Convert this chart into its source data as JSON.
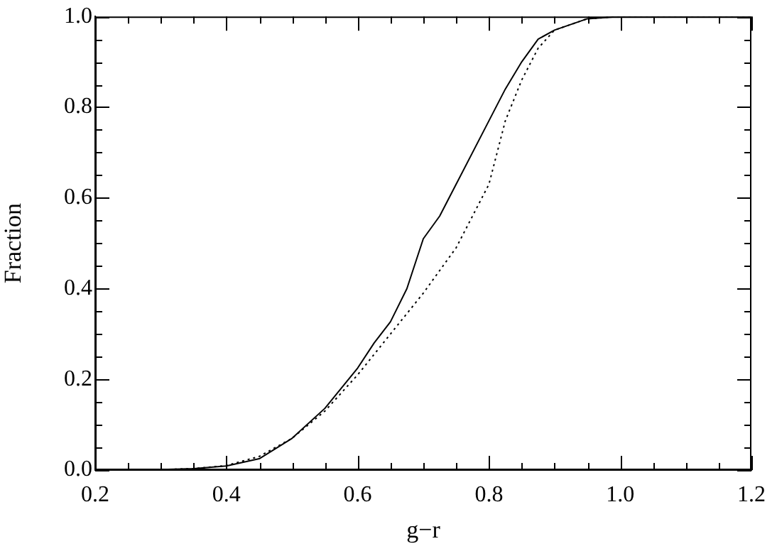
{
  "chart_data": {
    "type": "line",
    "xlabel": "g−r",
    "ylabel": "Fraction",
    "xlim": [
      0.2,
      1.2
    ],
    "ylim": [
      0,
      1
    ],
    "xticks": [
      0.2,
      {
        "value": 0.25,
        "label": null
      },
      {
        "value": 0.3,
        "label": null
      },
      {
        "value": 0.35,
        "label": null
      },
      0.4,
      {
        "value": 0.45,
        "label": null
      },
      {
        "value": 0.5,
        "label": null
      },
      {
        "value": 0.55,
        "label": null
      },
      0.6,
      {
        "value": 0.65,
        "label": null
      },
      {
        "value": 0.7,
        "label": null
      },
      {
        "value": 0.75,
        "label": null
      },
      0.8,
      {
        "value": 0.85,
        "label": null
      },
      {
        "value": 0.9,
        "label": null
      },
      {
        "value": 0.95,
        "label": null
      },
      {
        "value": 1,
        "label": "1.0"
      },
      {
        "value": 1.05,
        "label": null
      },
      {
        "value": 1.1,
        "label": null
      },
      {
        "value": 1.15,
        "label": null
      },
      1.2
    ],
    "yticks": [
      {
        "value": 0,
        "label": "0.0"
      },
      {
        "value": 0.05,
        "label": null
      },
      {
        "value": 0.1,
        "label": null
      },
      {
        "value": 0.15,
        "label": null
      },
      0.2,
      {
        "value": 0.25,
        "label": null
      },
      {
        "value": 0.3,
        "label": null
      },
      {
        "value": 0.35,
        "label": null
      },
      0.4,
      {
        "value": 0.45,
        "label": null
      },
      {
        "value": 0.5,
        "label": null
      },
      {
        "value": 0.55,
        "label": null
      },
      0.6,
      {
        "value": 0.65,
        "label": null
      },
      {
        "value": 0.7,
        "label": null
      },
      {
        "value": 0.75,
        "label": null
      },
      0.8,
      {
        "value": 0.85,
        "label": null
      },
      {
        "value": 0.9,
        "label": null
      },
      {
        "value": 0.95,
        "label": null
      },
      {
        "value": 1,
        "label": "1.0"
      }
    ],
    "grid": false,
    "legend": false,
    "marker": "none",
    "series": [
      {
        "color": "#000000",
        "line_style": "solid",
        "x": [
          0.2,
          0.3,
          0.35,
          0.4,
          0.45,
          0.5,
          0.55,
          0.6,
          0.625,
          0.65,
          0.675,
          0.7,
          0.725,
          0.75,
          0.8,
          0.825,
          0.85,
          0.875,
          0.9,
          0.95,
          1.0,
          1.2
        ],
        "values": [
          0,
          0.001,
          0.003,
          0.009,
          0.025,
          0.07,
          0.136,
          0.225,
          0.28,
          0.327,
          0.4,
          0.51,
          0.56,
          0.63,
          0.77,
          0.84,
          0.9,
          0.95,
          0.97,
          0.995,
          1,
          1
        ]
      },
      {
        "color": "#000000",
        "line_style": "dotted",
        "x": [
          0.2,
          0.3,
          0.35,
          0.4,
          0.45,
          0.5,
          0.55,
          0.6,
          0.65,
          0.7,
          0.75,
          0.8,
          0.825,
          0.85,
          0.875,
          0.9,
          0.95,
          1.0,
          1.2
        ],
        "values": [
          0,
          0.001,
          0.003,
          0.01,
          0.03,
          0.07,
          0.13,
          0.21,
          0.3,
          0.39,
          0.49,
          0.63,
          0.77,
          0.86,
          0.93,
          0.97,
          0.995,
          1,
          1
        ]
      }
    ]
  }
}
